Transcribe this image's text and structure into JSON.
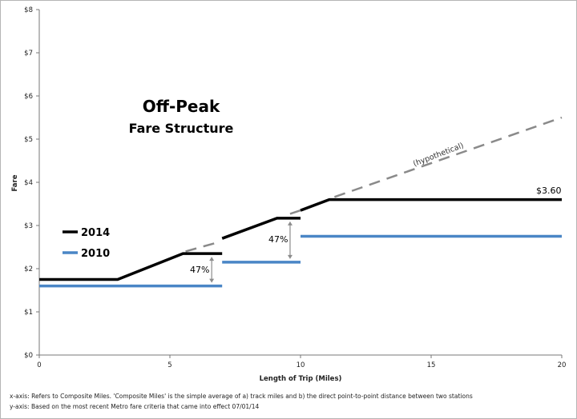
{
  "chart_data": {
    "type": "line",
    "title": "Off-Peak",
    "subtitle": "Fare Structure",
    "xlabel": "Length of Trip (Miles)",
    "ylabel": "Fare",
    "xlim": [
      0,
      20
    ],
    "ylim": [
      0,
      8
    ],
    "x_ticks": [
      0,
      5,
      10,
      15,
      20
    ],
    "x_tick_labels": [
      "0",
      "5",
      "10",
      "15",
      "20"
    ],
    "y_ticks": [
      0,
      1,
      2,
      3,
      4,
      5,
      6,
      7,
      8
    ],
    "y_tick_labels": [
      "$0",
      "$1",
      "$2",
      "$3",
      "$4",
      "$5",
      "$6",
      "$7",
      "$8"
    ],
    "grid": false,
    "legend_position": "left",
    "series": [
      {
        "name": "2014",
        "color": "#000000",
        "segments": [
          [
            [
              0,
              1.75
            ],
            [
              3,
              1.75
            ],
            [
              5.5,
              2.35
            ],
            [
              7,
              2.35
            ]
          ],
          [
            [
              7,
              2.7
            ],
            [
              9.1,
              3.17
            ],
            [
              10,
              3.17
            ]
          ],
          [
            [
              10,
              3.35
            ],
            [
              11.1,
              3.6
            ],
            [
              20,
              3.6
            ]
          ]
        ]
      },
      {
        "name": "2010",
        "color": "#4a86c6",
        "segments": [
          [
            [
              0,
              1.6
            ],
            [
              7,
              1.6
            ]
          ],
          [
            [
              7,
              2.15
            ],
            [
              10,
              2.15
            ]
          ],
          [
            [
              10,
              2.75
            ],
            [
              20,
              2.75
            ]
          ]
        ]
      }
    ],
    "hypothetical": {
      "color": "#8a8a8a",
      "segments": [
        [
          [
            5.6,
            2.4
          ],
          [
            6.9,
            2.62
          ]
        ],
        [
          [
            9.6,
            3.27
          ],
          [
            10,
            3.35
          ]
        ],
        [
          [
            11.3,
            3.66
          ],
          [
            20,
            5.5
          ]
        ]
      ],
      "label": "(hypothetical)"
    },
    "annotations": [
      {
        "text": "$3.60",
        "x": 19.2,
        "y": 3.6
      },
      {
        "text": "47%",
        "span_x": 6.6,
        "from": 1.6,
        "to": 2.35
      },
      {
        "text": "47%",
        "span_x": 9.6,
        "from": 2.15,
        "to": 3.17
      }
    ]
  },
  "notes": {
    "x_axis": "x-axis: Refers to Composite Miles. 'Composite Miles' is the simple average of a) track miles and b) the direct point-to-point distance between two stations",
    "y_axis": "y-axis: Based on the most recent Metro fare criteria that came into effect  07/01/14"
  }
}
